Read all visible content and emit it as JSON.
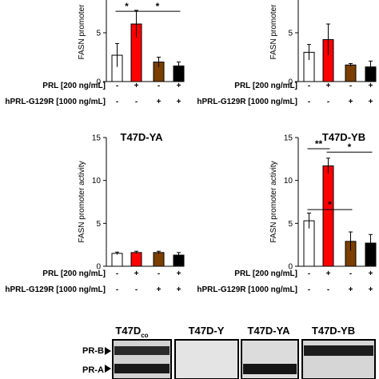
{
  "panels": [
    {
      "title": "",
      "ylabel": "FASN promoter",
      "ylim": [
        0,
        10
      ],
      "yticks": [
        "5",
        "0"
      ],
      "show_treatment_rows": true
    },
    {
      "title": "",
      "ylabel": "FASN promoter",
      "ylim": [
        0,
        10
      ],
      "yticks": [
        "5",
        "0"
      ],
      "show_treatment_rows": true
    },
    {
      "title": "T47D-YA",
      "ylabel": "FASN promoter activity",
      "ylim": [
        0,
        15
      ],
      "yticks": [
        "15",
        "10",
        "5",
        "0"
      ],
      "show_treatment_rows": true
    },
    {
      "title": "T47D-YB",
      "ylabel": "FASN promoter activity",
      "ylim": [
        0,
        15
      ],
      "yticks": [
        "15",
        "10",
        "5",
        "0"
      ],
      "show_treatment_rows": true
    }
  ],
  "treatment_rows": [
    {
      "label": "PRL [200 ng/mL]",
      "signs": [
        "-",
        "+",
        "-",
        "+"
      ]
    },
    {
      "label": "hPRL-G129R [1000 ng/mL]",
      "signs": [
        "-",
        "-",
        "+",
        "+"
      ]
    }
  ],
  "chart_data": [
    {
      "type": "bar",
      "title": "",
      "ylabel": "FASN promoter",
      "ylim": [
        0,
        10
      ],
      "categories": [
        "1",
        "2",
        "3",
        "4"
      ],
      "values": [
        2.7,
        5.9,
        2.0,
        1.6
      ],
      "errors": [
        1.2,
        1.4,
        0.5,
        0.4
      ],
      "colors": [
        "#ffffff",
        "#ff0000",
        "#7b3f00",
        "#000000"
      ],
      "significance": [
        {
          "from": 0,
          "to": 1,
          "y": 7.2,
          "label": "*"
        },
        {
          "from": 1,
          "to": 3,
          "y": 7.2,
          "label": "*"
        }
      ]
    },
    {
      "type": "bar",
      "title": "",
      "ylabel": "FASN promoter",
      "ylim": [
        0,
        10
      ],
      "categories": [
        "1",
        "2",
        "3",
        "4"
      ],
      "values": [
        3.0,
        4.3,
        1.7,
        1.5
      ],
      "errors": [
        0.8,
        1.6,
        0.15,
        0.6
      ],
      "colors": [
        "#ffffff",
        "#ff0000",
        "#7b3f00",
        "#000000"
      ],
      "significance": []
    },
    {
      "type": "bar",
      "title": "T47D-YA",
      "ylabel": "FASN promoter activity",
      "ylim": [
        0,
        15
      ],
      "categories": [
        "1",
        "2",
        "3",
        "4"
      ],
      "values": [
        1.5,
        1.6,
        1.6,
        1.3
      ],
      "errors": [
        0.15,
        0.15,
        0.15,
        0.3
      ],
      "colors": [
        "#ffffff",
        "#ff0000",
        "#7b3f00",
        "#000000"
      ],
      "significance": []
    },
    {
      "type": "bar",
      "title": "T47D-YB",
      "ylabel": "FASN promoter activity",
      "ylim": [
        0,
        15
      ],
      "categories": [
        "1",
        "2",
        "3",
        "4"
      ],
      "values": [
        5.3,
        11.7,
        2.9,
        2.7
      ],
      "errors": [
        0.9,
        0.9,
        1.1,
        1.0
      ],
      "colors": [
        "#ffffff",
        "#ff0000",
        "#7b3f00",
        "#000000"
      ],
      "significance": [
        {
          "from": 0,
          "to": 1,
          "y": 13.7,
          "label": "**"
        },
        {
          "from": 1,
          "to": 3,
          "y": 13.3,
          "label": "*"
        },
        {
          "from": 0,
          "to": 2,
          "y": 6.6,
          "label": "*"
        }
      ]
    }
  ],
  "blot": {
    "headers": [
      "T47D",
      "T47D-Y",
      "T47D-YA",
      "T47D-YB"
    ],
    "header_subscript": "co",
    "row_labels": [
      "PR-B",
      "PR-A"
    ]
  }
}
